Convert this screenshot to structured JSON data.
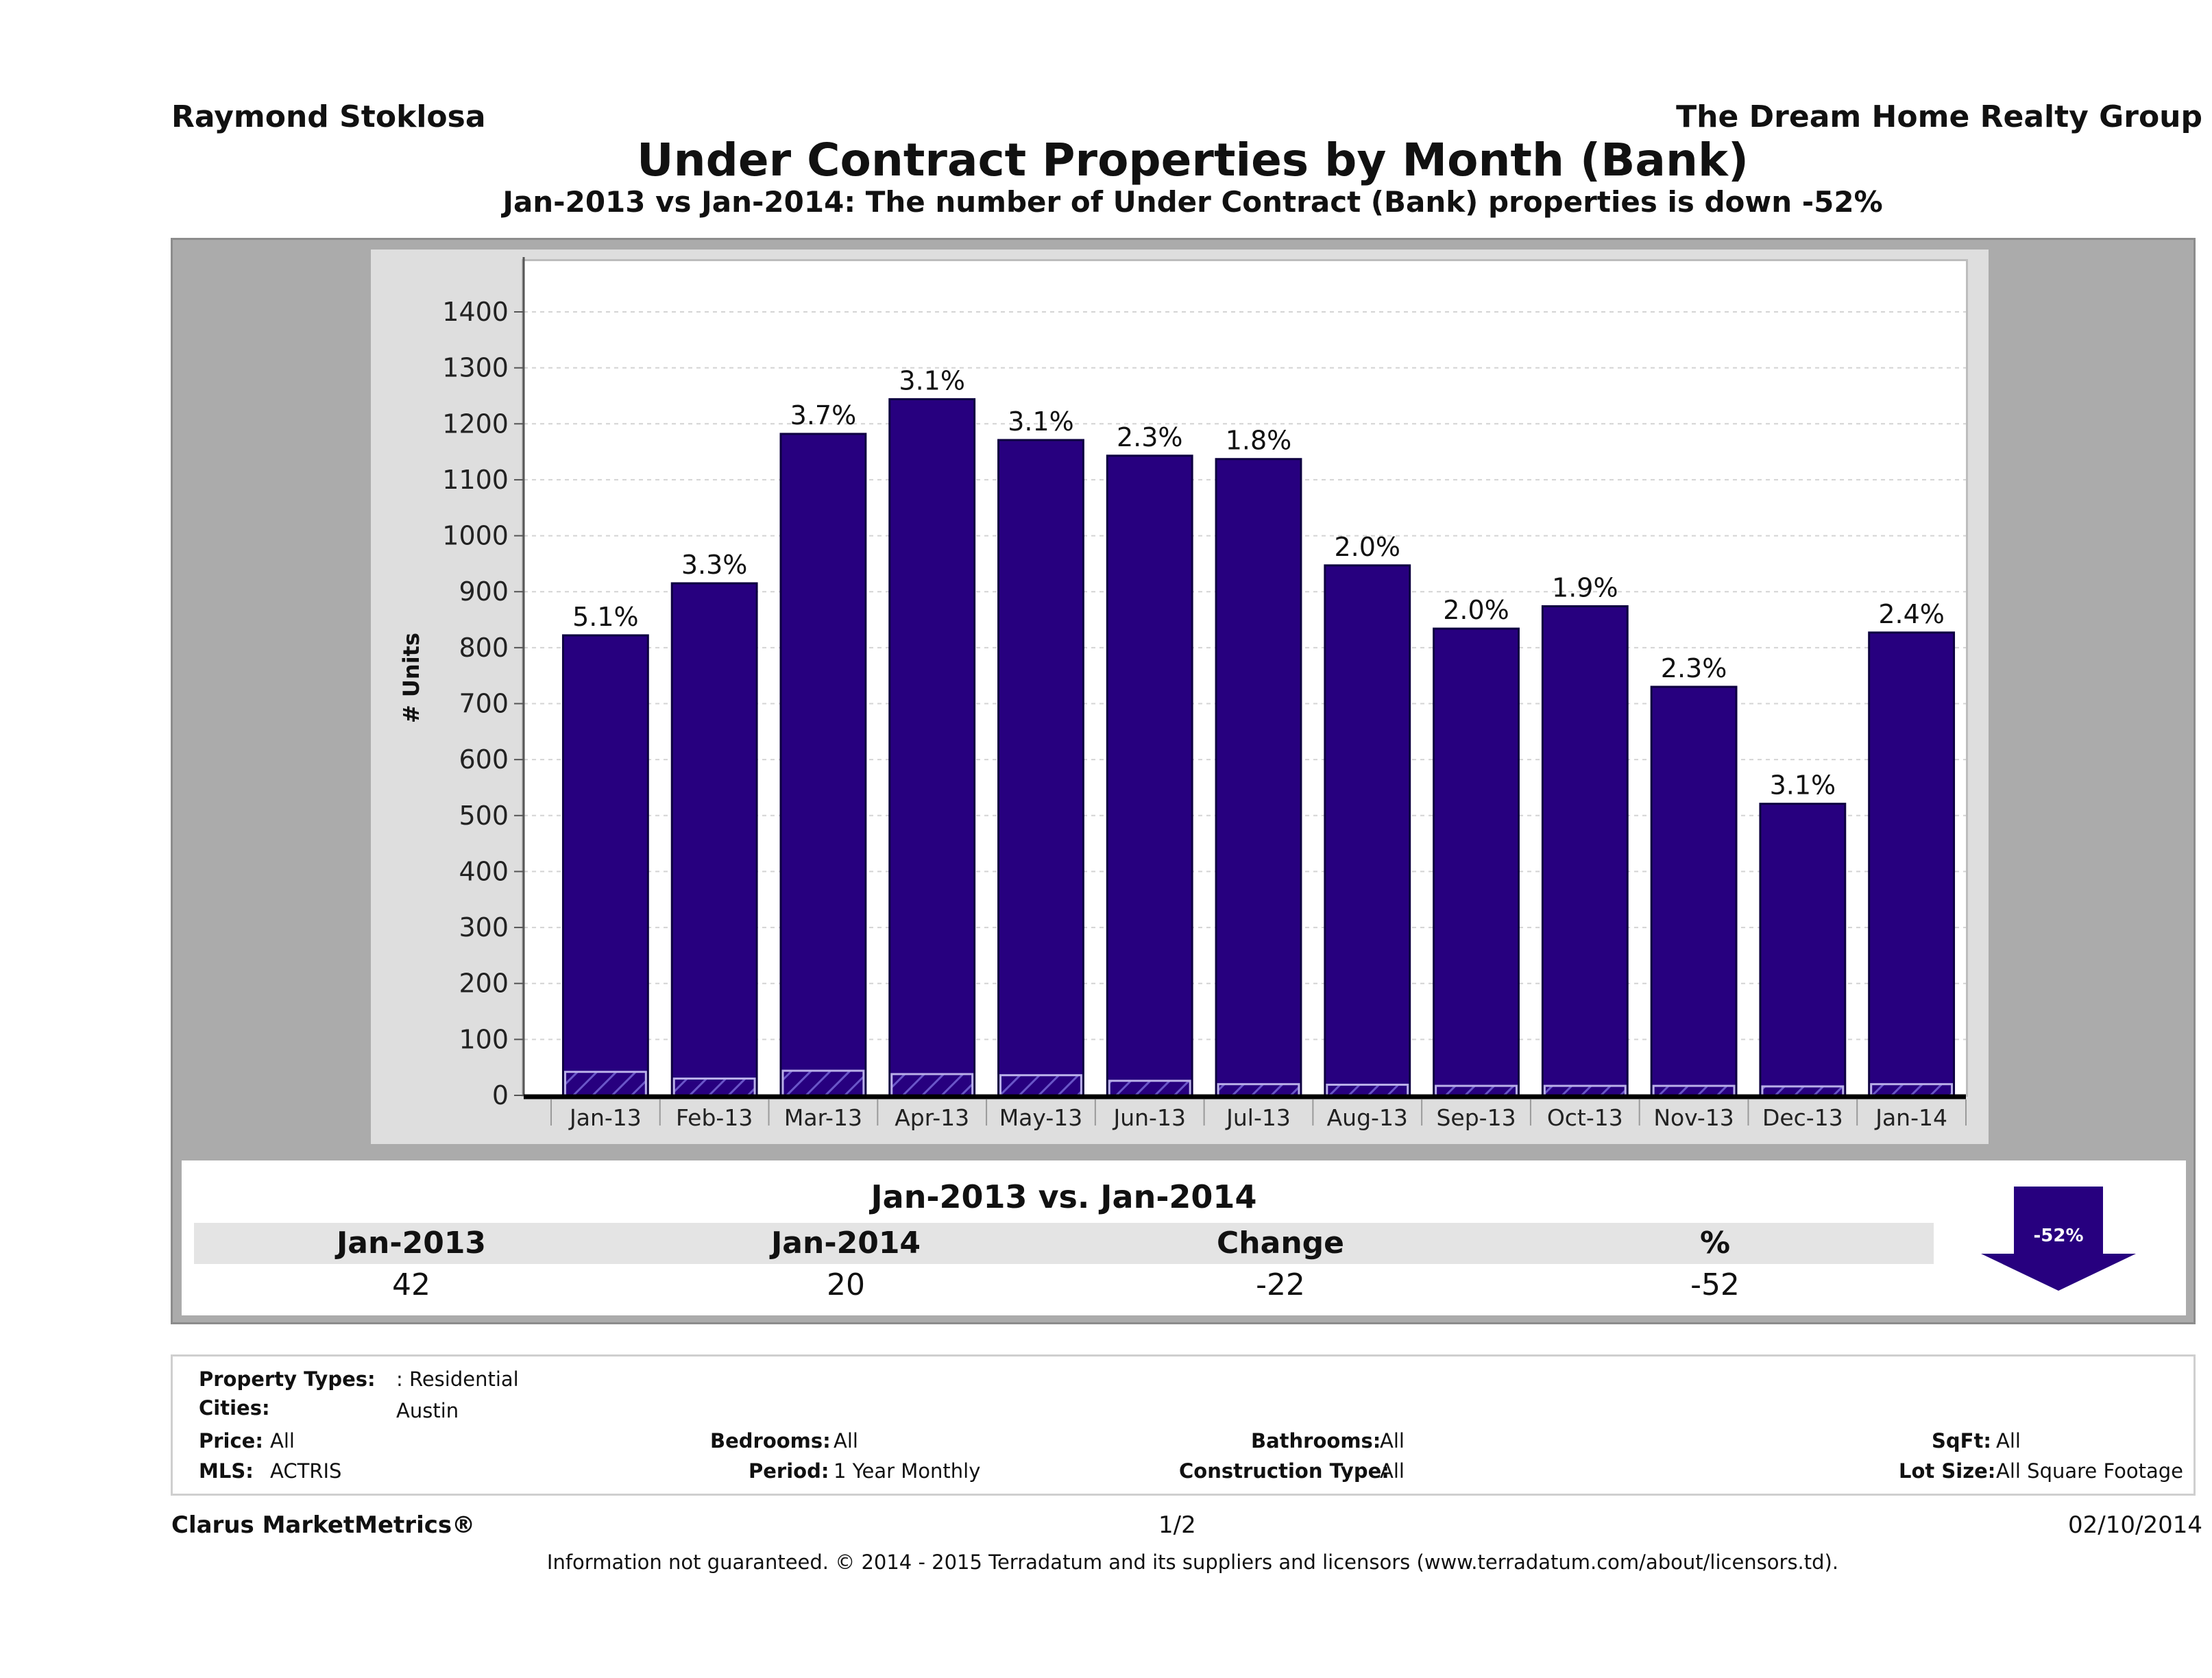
{
  "header": {
    "agent": "Raymond Stoklosa",
    "company": "The Dream Home Realty Group",
    "title": "Under Contract Properties by Month (Bank)",
    "subtitle": "Jan-2013 vs Jan-2014: The number of Under Contract (Bank)  properties is down -52%"
  },
  "chart_data": {
    "type": "bar",
    "ylabel": "# Units",
    "xlabel": "",
    "ylim": [
      0,
      1400
    ],
    "yticks": [
      0,
      100,
      200,
      300,
      400,
      500,
      600,
      700,
      800,
      900,
      1000,
      1100,
      1200,
      1300,
      1400
    ],
    "grid": true,
    "categories": [
      "Jan-13",
      "Feb-13",
      "Mar-13",
      "Apr-13",
      "May-13",
      "Jun-13",
      "Jul-13",
      "Aug-13",
      "Sep-13",
      "Oct-13",
      "Nov-13",
      "Dec-13",
      "Jan-14"
    ],
    "series": [
      {
        "values": [
          822,
          915,
          1182,
          1244,
          1171,
          1143,
          1137,
          947,
          834,
          874,
          730,
          521,
          827
        ]
      },
      {
        "values": [
          42,
          30,
          44,
          38,
          36,
          26,
          20,
          19,
          17,
          17,
          17,
          16,
          20
        ]
      }
    ],
    "data_labels": [
      "5.1%",
      "3.3%",
      "3.7%",
      "3.1%",
      "3.1%",
      "2.3%",
      "1.8%",
      "2.0%",
      "2.0%",
      "1.9%",
      "2.3%",
      "3.1%",
      "2.4%"
    ],
    "colors": {
      "bar": "#27007f",
      "bar_border": "#0d0040",
      "hatch": "#6a56c8"
    }
  },
  "comparison": {
    "title": "Jan-2013 vs. Jan-2014",
    "headers": [
      "Jan-2013",
      "Jan-2014",
      "Change",
      "%"
    ],
    "values": [
      "42",
      "20",
      "-22",
      "-52"
    ],
    "badge": "-52%"
  },
  "filters": {
    "property_types_label": "Property Types:",
    "property_types_value": ": Residential",
    "cities_label": "Cities:",
    "cities_value": "Austin",
    "price_label": "Price:",
    "price_value": "All",
    "bedrooms_label": "Bedrooms:",
    "bedrooms_value": "All",
    "bathrooms_label": "Bathrooms:",
    "bathrooms_value": "All",
    "sqft_label": "SqFt:",
    "sqft_value": "All",
    "mls_label": "MLS:",
    "mls_value": "ACTRIS",
    "period_label": "Period:",
    "period_value": "1 Year Monthly",
    "construction_label": "Construction Type:",
    "construction_value": "All",
    "lot_label": "Lot Size:",
    "lot_value": "All Square Footage"
  },
  "footer": {
    "brand": "Clarus MarketMetrics®",
    "page": "1/2",
    "date": "02/10/2014",
    "disclaimer": "Information not guaranteed. © 2014 - 2015 Terradatum and its suppliers and licensors (www.terradatum.com/about/licensors.td)."
  }
}
